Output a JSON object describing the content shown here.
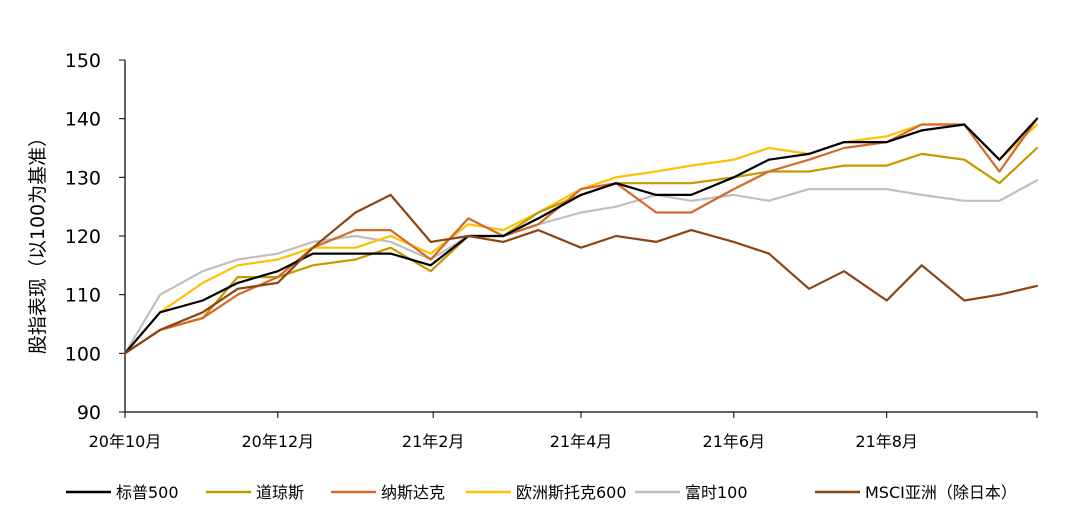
{
  "chart_data": {
    "type": "line",
    "title": "",
    "xlabel": "",
    "ylabel": "股指表现（以100为基准）",
    "ylim": [
      90,
      150
    ],
    "yticks": [
      90,
      100,
      110,
      120,
      130,
      140,
      150
    ],
    "x_start": "2020-10-01",
    "x_end": "2021-09-30",
    "x_ticks": [
      {
        "date": "2020-10-01",
        "label": "20年10月"
      },
      {
        "date": "2020-12-01",
        "label": "20年12月"
      },
      {
        "date": "2021-02-01",
        "label": "21年2月"
      },
      {
        "date": "2021-04-01",
        "label": "21年4月"
      },
      {
        "date": "2021-06-01",
        "label": "21年6月"
      },
      {
        "date": "2021-08-01",
        "label": "21年8月"
      }
    ],
    "grid": false,
    "legend_position": "bottom",
    "series": [
      {
        "name": "标普500",
        "color": "#000000",
        "points": [
          [
            "2020-10-01",
            100
          ],
          [
            "2020-10-15",
            107
          ],
          [
            "2020-11-01",
            109
          ],
          [
            "2020-11-15",
            112
          ],
          [
            "2020-12-01",
            114
          ],
          [
            "2020-12-15",
            117
          ],
          [
            "2021-01-01",
            117
          ],
          [
            "2021-01-15",
            117
          ],
          [
            "2021-01-31",
            115
          ],
          [
            "2021-02-15",
            120
          ],
          [
            "2021-03-01",
            120
          ],
          [
            "2021-03-15",
            123
          ],
          [
            "2021-04-01",
            127
          ],
          [
            "2021-04-15",
            129
          ],
          [
            "2021-05-01",
            127
          ],
          [
            "2021-05-15",
            127
          ],
          [
            "2021-06-01",
            130
          ],
          [
            "2021-06-15",
            133
          ],
          [
            "2021-07-01",
            134
          ],
          [
            "2021-07-15",
            136
          ],
          [
            "2021-08-01",
            136
          ],
          [
            "2021-08-15",
            138
          ],
          [
            "2021-09-01",
            139
          ],
          [
            "2021-09-15",
            133
          ],
          [
            "2021-09-30",
            140
          ]
        ]
      },
      {
        "name": "道琼斯",
        "color": "#C49A00",
        "points": [
          [
            "2020-10-01",
            100
          ],
          [
            "2020-10-15",
            104
          ],
          [
            "2020-11-01",
            106
          ],
          [
            "2020-11-15",
            113
          ],
          [
            "2020-12-01",
            113
          ],
          [
            "2020-12-15",
            115
          ],
          [
            "2021-01-01",
            116
          ],
          [
            "2021-01-15",
            118
          ],
          [
            "2021-01-31",
            114
          ],
          [
            "2021-02-15",
            120
          ],
          [
            "2021-03-01",
            120
          ],
          [
            "2021-03-15",
            124
          ],
          [
            "2021-04-01",
            127
          ],
          [
            "2021-04-15",
            129
          ],
          [
            "2021-05-01",
            129
          ],
          [
            "2021-05-15",
            129
          ],
          [
            "2021-06-01",
            130
          ],
          [
            "2021-06-15",
            131
          ],
          [
            "2021-07-01",
            131
          ],
          [
            "2021-07-15",
            132
          ],
          [
            "2021-08-01",
            132
          ],
          [
            "2021-08-15",
            134
          ],
          [
            "2021-09-01",
            133
          ],
          [
            "2021-09-15",
            129
          ],
          [
            "2021-09-30",
            135
          ]
        ]
      },
      {
        "name": "纳斯达克",
        "color": "#D4692A",
        "points": [
          [
            "2020-10-01",
            100
          ],
          [
            "2020-10-15",
            104
          ],
          [
            "2020-11-01",
            106
          ],
          [
            "2020-11-15",
            110
          ],
          [
            "2020-12-01",
            113
          ],
          [
            "2020-12-15",
            118
          ],
          [
            "2021-01-01",
            121
          ],
          [
            "2021-01-15",
            121
          ],
          [
            "2021-01-31",
            116
          ],
          [
            "2021-02-15",
            123
          ],
          [
            "2021-03-01",
            120
          ],
          [
            "2021-03-15",
            122
          ],
          [
            "2021-04-01",
            128
          ],
          [
            "2021-04-15",
            129
          ],
          [
            "2021-05-01",
            124
          ],
          [
            "2021-05-15",
            124
          ],
          [
            "2021-06-01",
            128
          ],
          [
            "2021-06-15",
            131
          ],
          [
            "2021-07-01",
            133
          ],
          [
            "2021-07-15",
            135
          ],
          [
            "2021-08-01",
            136
          ],
          [
            "2021-08-15",
            139
          ],
          [
            "2021-09-01",
            139
          ],
          [
            "2021-09-15",
            131
          ],
          [
            "2021-09-30",
            140
          ]
        ]
      },
      {
        "name": "欧洲斯托克600",
        "color": "#FFC000",
        "points": [
          [
            "2020-10-01",
            100
          ],
          [
            "2020-10-15",
            107
          ],
          [
            "2020-11-01",
            112
          ],
          [
            "2020-11-15",
            115
          ],
          [
            "2020-12-01",
            116
          ],
          [
            "2020-12-15",
            118
          ],
          [
            "2021-01-01",
            118
          ],
          [
            "2021-01-15",
            120
          ],
          [
            "2021-01-31",
            117
          ],
          [
            "2021-02-15",
            122
          ],
          [
            "2021-03-01",
            121
          ],
          [
            "2021-03-15",
            124
          ],
          [
            "2021-04-01",
            128
          ],
          [
            "2021-04-15",
            130
          ],
          [
            "2021-05-01",
            131
          ],
          [
            "2021-05-15",
            132
          ],
          [
            "2021-06-01",
            133
          ],
          [
            "2021-06-15",
            135
          ],
          [
            "2021-07-01",
            134
          ],
          [
            "2021-07-15",
            136
          ],
          [
            "2021-08-01",
            137
          ],
          [
            "2021-08-15",
            139
          ],
          [
            "2021-09-01",
            139
          ],
          [
            "2021-09-15",
            133
          ],
          [
            "2021-09-30",
            139
          ]
        ]
      },
      {
        "name": "富时100",
        "color": "#BFBFBF",
        "points": [
          [
            "2020-10-01",
            100
          ],
          [
            "2020-10-15",
            110
          ],
          [
            "2020-11-01",
            114
          ],
          [
            "2020-11-15",
            116
          ],
          [
            "2020-12-01",
            117
          ],
          [
            "2020-12-15",
            119
          ],
          [
            "2021-01-01",
            120
          ],
          [
            "2021-01-15",
            119
          ],
          [
            "2021-01-31",
            116
          ],
          [
            "2021-02-15",
            120
          ],
          [
            "2021-03-01",
            120
          ],
          [
            "2021-03-15",
            122
          ],
          [
            "2021-04-01",
            124
          ],
          [
            "2021-04-15",
            125
          ],
          [
            "2021-05-01",
            127
          ],
          [
            "2021-05-15",
            126
          ],
          [
            "2021-06-01",
            127
          ],
          [
            "2021-06-15",
            126
          ],
          [
            "2021-07-01",
            128
          ],
          [
            "2021-07-15",
            128
          ],
          [
            "2021-08-01",
            128
          ],
          [
            "2021-08-15",
            127
          ],
          [
            "2021-09-01",
            126
          ],
          [
            "2021-09-15",
            126
          ],
          [
            "2021-09-30",
            129.5
          ]
        ]
      },
      {
        "name": "MSCI亚洲（除日本）",
        "color": "#8B4513",
        "points": [
          [
            "2020-10-01",
            100
          ],
          [
            "2020-10-15",
            104
          ],
          [
            "2020-11-01",
            107
          ],
          [
            "2020-11-15",
            111
          ],
          [
            "2020-12-01",
            112
          ],
          [
            "2020-12-15",
            118
          ],
          [
            "2021-01-01",
            124
          ],
          [
            "2021-01-15",
            127
          ],
          [
            "2021-01-31",
            119
          ],
          [
            "2021-02-15",
            120
          ],
          [
            "2021-03-01",
            119
          ],
          [
            "2021-03-15",
            121
          ],
          [
            "2021-04-01",
            118
          ],
          [
            "2021-04-15",
            120
          ],
          [
            "2021-05-01",
            119
          ],
          [
            "2021-05-15",
            121
          ],
          [
            "2021-06-01",
            119
          ],
          [
            "2021-06-15",
            117
          ],
          [
            "2021-07-01",
            111
          ],
          [
            "2021-07-15",
            114
          ],
          [
            "2021-08-01",
            109
          ],
          [
            "2021-08-15",
            115
          ],
          [
            "2021-09-01",
            109
          ],
          [
            "2021-09-15",
            110
          ],
          [
            "2021-09-30",
            111.5
          ]
        ]
      }
    ]
  }
}
